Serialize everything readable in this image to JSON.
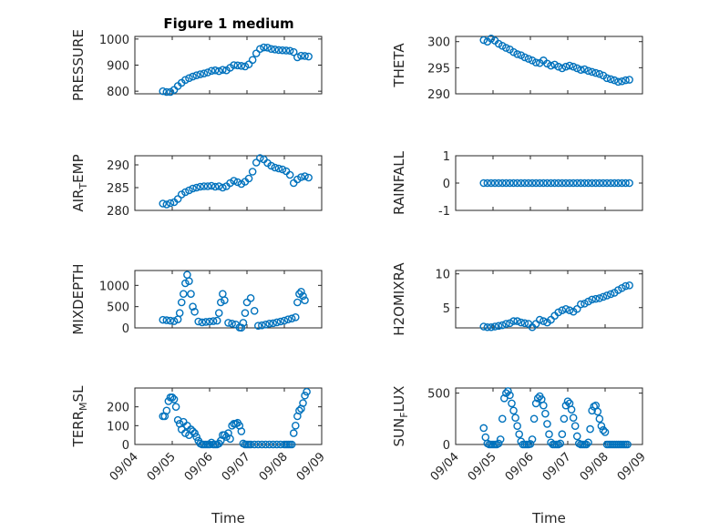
{
  "figure": {
    "title": "Figure 1 medium"
  },
  "colors": {
    "marker": "#0072BD",
    "axes": "#262626",
    "grid": "#d6d6d6"
  },
  "chart_data": [
    {
      "type": "scatter",
      "ylabel": "PRESSURE",
      "ylim": [
        790,
        1010
      ],
      "yticks": [
        800,
        900,
        1000
      ],
      "xlim": [
        "09/04",
        "09/09"
      ],
      "xticks": [],
      "xlabel": "",
      "grid": true,
      "x": [
        4.75,
        4.85,
        4.95,
        5.05,
        5.15,
        5.25,
        5.35,
        5.45,
        5.55,
        5.65,
        5.75,
        5.85,
        5.95,
        6.05,
        6.15,
        6.25,
        6.35,
        6.45,
        6.55,
        6.65,
        6.75,
        6.85,
        6.95,
        7.05,
        7.15,
        7.25,
        7.35,
        7.45,
        7.55,
        7.65,
        7.75,
        7.85,
        7.95,
        8.05,
        8.15,
        8.25,
        8.35,
        8.45,
        8.55,
        8.65
      ],
      "y": [
        800,
        797,
        797,
        805,
        820,
        832,
        843,
        850,
        856,
        861,
        865,
        868,
        872,
        878,
        880,
        877,
        882,
        880,
        890,
        900,
        899,
        897,
        895,
        903,
        920,
        945,
        962,
        968,
        967,
        962,
        960,
        958,
        957,
        956,
        955,
        950,
        930,
        936,
        935,
        933
      ]
    },
    {
      "type": "scatter",
      "ylabel": "THETA",
      "ylim": [
        290,
        301
      ],
      "yticks": [
        290,
        295,
        300
      ],
      "xlim": [
        "09/04",
        "09/09"
      ],
      "xticks": [],
      "xlabel": "",
      "grid": true,
      "x": [
        4.75,
        4.85,
        4.95,
        5.05,
        5.15,
        5.25,
        5.35,
        5.45,
        5.55,
        5.65,
        5.75,
        5.85,
        5.95,
        6.05,
        6.15,
        6.25,
        6.35,
        6.45,
        6.55,
        6.65,
        6.75,
        6.85,
        6.95,
        7.05,
        7.15,
        7.25,
        7.35,
        7.45,
        7.55,
        7.65,
        7.75,
        7.85,
        7.95,
        8.05,
        8.15,
        8.25,
        8.35,
        8.45,
        8.55,
        8.65
      ],
      "y": [
        300.3,
        300.0,
        300.6,
        300.2,
        299.6,
        299.2,
        298.8,
        298.5,
        298.0,
        297.6,
        297.4,
        297.0,
        296.7,
        296.4,
        296.0,
        295.9,
        296.4,
        295.8,
        295.4,
        295.6,
        295.2,
        294.9,
        295.2,
        295.4,
        295.2,
        294.9,
        294.6,
        294.7,
        294.4,
        294.2,
        294.0,
        293.8,
        293.5,
        293.0,
        292.8,
        292.6,
        292.3,
        292.4,
        292.6,
        292.7
      ]
    },
    {
      "type": "scatter",
      "ylabel": "AIR_TEMP",
      "ylim": [
        280,
        292
      ],
      "yticks": [
        280,
        285,
        290
      ],
      "xlim": [
        "09/04",
        "09/09"
      ],
      "xticks": [],
      "xlabel": "",
      "grid": true,
      "x": [
        4.75,
        4.85,
        4.95,
        5.05,
        5.15,
        5.25,
        5.35,
        5.45,
        5.55,
        5.65,
        5.75,
        5.85,
        5.95,
        6.05,
        6.15,
        6.25,
        6.35,
        6.45,
        6.55,
        6.65,
        6.75,
        6.85,
        6.95,
        7.05,
        7.15,
        7.25,
        7.35,
        7.45,
        7.55,
        7.65,
        7.75,
        7.85,
        7.95,
        8.05,
        8.15,
        8.25,
        8.35,
        8.45,
        8.55,
        8.65
      ],
      "y": [
        281.5,
        281.3,
        281.6,
        281.8,
        282.5,
        283.5,
        284.0,
        284.4,
        284.8,
        285.0,
        285.2,
        285.3,
        285.3,
        285.4,
        285.2,
        285.3,
        285.0,
        285.3,
        286.0,
        286.5,
        286.2,
        285.8,
        286.3,
        287.0,
        288.5,
        290.5,
        291.5,
        291.2,
        290.4,
        289.8,
        289.4,
        289.2,
        289.0,
        288.6,
        287.8,
        286.0,
        286.8,
        287.3,
        287.5,
        287.2
      ]
    },
    {
      "type": "scatter",
      "ylabel": "RAINFALL",
      "ylim": [
        -1,
        1
      ],
      "yticks": [
        -1,
        0,
        1
      ],
      "xlim": [
        "09/04",
        "09/09"
      ],
      "xticks": [],
      "xlabel": "",
      "grid": true,
      "x": [
        4.75,
        4.85,
        4.95,
        5.05,
        5.15,
        5.25,
        5.35,
        5.45,
        5.55,
        5.65,
        5.75,
        5.85,
        5.95,
        6.05,
        6.15,
        6.25,
        6.35,
        6.45,
        6.55,
        6.65,
        6.75,
        6.85,
        6.95,
        7.05,
        7.15,
        7.25,
        7.35,
        7.45,
        7.55,
        7.65,
        7.75,
        7.85,
        7.95,
        8.05,
        8.15,
        8.25,
        8.35,
        8.45,
        8.55,
        8.65
      ],
      "y": [
        0,
        0,
        0,
        0,
        0,
        0,
        0,
        0,
        0,
        0,
        0,
        0,
        0,
        0,
        0,
        0,
        0,
        0,
        0,
        0,
        0,
        0,
        0,
        0,
        0,
        0,
        0,
        0,
        0,
        0,
        0,
        0,
        0,
        0,
        0,
        0,
        0,
        0,
        0,
        0
      ]
    },
    {
      "type": "scatter",
      "ylabel": "MIXDEPTH",
      "ylim": [
        0,
        1350
      ],
      "yticks": [
        0,
        500,
        1000
      ],
      "xlim": [
        "09/04",
        "09/09"
      ],
      "xticks": [],
      "xlabel": "",
      "grid": true,
      "x": [
        4.75,
        4.85,
        4.95,
        5.05,
        5.15,
        5.2,
        5.25,
        5.3,
        5.35,
        5.4,
        5.45,
        5.5,
        5.55,
        5.6,
        5.7,
        5.8,
        5.9,
        6.0,
        6.1,
        6.2,
        6.25,
        6.3,
        6.35,
        6.4,
        6.5,
        6.6,
        6.7,
        6.8,
        6.85,
        6.9,
        6.95,
        7.0,
        7.1,
        7.2,
        7.3,
        7.4,
        7.5,
        7.6,
        7.7,
        7.8,
        7.9,
        8.0,
        8.1,
        8.2,
        8.3,
        8.35,
        8.4,
        8.45,
        8.5,
        8.55
      ],
      "y": [
        190,
        180,
        170,
        160,
        200,
        350,
        600,
        800,
        1050,
        1250,
        1100,
        800,
        500,
        380,
        150,
        130,
        140,
        150,
        160,
        170,
        350,
        600,
        800,
        650,
        120,
        100,
        80,
        10,
        5,
        120,
        350,
        600,
        700,
        400,
        50,
        60,
        80,
        100,
        110,
        130,
        150,
        170,
        200,
        220,
        250,
        600,
        800,
        850,
        750,
        650
      ]
    },
    {
      "type": "scatter",
      "ylabel": "H2OMIXRA",
      "ylim": [
        2,
        10.5
      ],
      "yticks": [
        5,
        10
      ],
      "xlim": [
        "09/04",
        "09/09"
      ],
      "xticks": [],
      "xlabel": "",
      "grid": true,
      "x": [
        4.75,
        4.85,
        4.95,
        5.05,
        5.15,
        5.25,
        5.35,
        5.45,
        5.55,
        5.65,
        5.75,
        5.85,
        5.95,
        6.05,
        6.15,
        6.25,
        6.35,
        6.45,
        6.55,
        6.65,
        6.75,
        6.85,
        6.95,
        7.05,
        7.15,
        7.25,
        7.35,
        7.45,
        7.55,
        7.65,
        7.75,
        7.85,
        7.95,
        8.05,
        8.15,
        8.25,
        8.35,
        8.45,
        8.55,
        8.65
      ],
      "y": [
        2.2,
        2.1,
        2.1,
        2.2,
        2.3,
        2.4,
        2.6,
        2.7,
        3.0,
        3.0,
        2.8,
        2.7,
        2.6,
        2.1,
        2.6,
        3.2,
        3.0,
        2.8,
        3.2,
        3.8,
        4.3,
        4.6,
        4.8,
        4.6,
        4.4,
        4.8,
        5.5,
        5.6,
        5.9,
        6.2,
        6.3,
        6.4,
        6.6,
        6.8,
        7.0,
        7.2,
        7.6,
        7.9,
        8.2,
        8.3
      ]
    },
    {
      "type": "scatter",
      "ylabel": "TERR_MSL",
      "ylim": [
        0,
        300
      ],
      "yticks": [
        0,
        100,
        200
      ],
      "xlim": [
        "09/04",
        "09/09"
      ],
      "xticks": [
        "09/04",
        "09/05",
        "09/06",
        "09/07",
        "09/08",
        "09/09"
      ],
      "xlabel": "Time",
      "grid": true,
      "x": [
        4.75,
        4.8,
        4.85,
        4.9,
        4.95,
        5.0,
        5.05,
        5.1,
        5.15,
        5.2,
        5.25,
        5.3,
        5.35,
        5.4,
        5.45,
        5.5,
        5.55,
        5.6,
        5.65,
        5.7,
        5.75,
        5.8,
        5.85,
        5.9,
        5.95,
        6.0,
        6.05,
        6.1,
        6.15,
        6.2,
        6.25,
        6.3,
        6.35,
        6.4,
        6.45,
        6.5,
        6.55,
        6.6,
        6.65,
        6.7,
        6.75,
        6.8,
        6.85,
        6.9,
        6.95,
        7.0,
        7.05,
        7.1,
        7.2,
        7.3,
        7.4,
        7.5,
        7.6,
        7.7,
        7.8,
        7.9,
        8.0,
        8.05,
        8.1,
        8.15,
        8.2,
        8.25,
        8.3,
        8.35,
        8.4,
        8.45,
        8.5,
        8.55,
        8.6
      ],
      "y": [
        150,
        150,
        180,
        230,
        250,
        250,
        240,
        200,
        130,
        110,
        80,
        120,
        60,
        100,
        50,
        80,
        70,
        60,
        40,
        20,
        5,
        0,
        0,
        0,
        0,
        0,
        10,
        0,
        0,
        0,
        5,
        20,
        50,
        50,
        40,
        60,
        30,
        100,
        110,
        110,
        115,
        100,
        70,
        5,
        0,
        0,
        0,
        0,
        0,
        0,
        0,
        0,
        0,
        0,
        0,
        0,
        0,
        0,
        0,
        0,
        0,
        60,
        100,
        150,
        180,
        190,
        220,
        260,
        280
      ]
    },
    {
      "type": "scatter",
      "ylabel": "SUN_FLUX",
      "ylim": [
        0,
        550
      ],
      "yticks": [
        0,
        500
      ],
      "xlim": [
        "09/04",
        "09/09"
      ],
      "xticks": [
        "09/04",
        "09/05",
        "09/06",
        "09/07",
        "09/08",
        "09/09"
      ],
      "xlabel": "Time",
      "grid": true,
      "x": [
        4.75,
        4.8,
        4.85,
        4.9,
        4.95,
        5.0,
        5.05,
        5.1,
        5.15,
        5.2,
        5.25,
        5.3,
        5.35,
        5.4,
        5.45,
        5.5,
        5.55,
        5.6,
        5.65,
        5.7,
        5.75,
        5.8,
        5.85,
        5.9,
        5.95,
        6.0,
        6.05,
        6.1,
        6.15,
        6.2,
        6.25,
        6.3,
        6.35,
        6.4,
        6.45,
        6.5,
        6.55,
        6.6,
        6.65,
        6.7,
        6.75,
        6.8,
        6.85,
        6.9,
        6.95,
        7.0,
        7.05,
        7.1,
        7.15,
        7.2,
        7.25,
        7.3,
        7.35,
        7.4,
        7.45,
        7.5,
        7.55,
        7.6,
        7.65,
        7.7,
        7.75,
        7.8,
        7.85,
        7.9,
        7.95,
        8.0,
        8.05,
        8.1,
        8.15,
        8.2,
        8.25,
        8.3,
        8.35,
        8.4,
        8.45,
        8.5,
        8.55,
        8.6
      ],
      "y": [
        160,
        70,
        10,
        0,
        0,
        0,
        0,
        0,
        10,
        50,
        250,
        450,
        500,
        520,
        480,
        400,
        330,
        260,
        180,
        100,
        30,
        0,
        0,
        0,
        0,
        5,
        50,
        250,
        400,
        450,
        470,
        440,
        380,
        300,
        200,
        100,
        20,
        0,
        0,
        0,
        0,
        10,
        100,
        250,
        380,
        420,
        400,
        340,
        260,
        180,
        80,
        10,
        0,
        0,
        0,
        0,
        20,
        150,
        330,
        370,
        380,
        320,
        250,
        180,
        140,
        120,
        0,
        0,
        0,
        0,
        0,
        0,
        0,
        0,
        0,
        0,
        0,
        0
      ]
    }
  ]
}
